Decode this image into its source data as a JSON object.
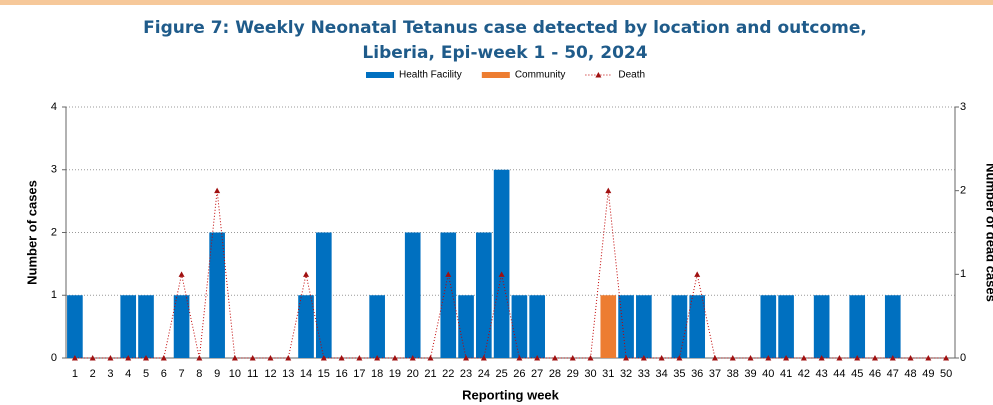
{
  "chart_data": {
    "type": "bar",
    "stacked": true,
    "title": "Figure 7: Weekly Neonatal Tetanus case detected by location and outcome, Liberia, Epi-week 1 - 50, 2024",
    "x_label": "Reporting week",
    "y_label": "Number of cases",
    "y2_label": "Number of dead cases",
    "categories": [
      1,
      2,
      3,
      4,
      5,
      6,
      7,
      8,
      9,
      10,
      11,
      12,
      13,
      14,
      15,
      16,
      17,
      18,
      19,
      20,
      21,
      22,
      23,
      24,
      25,
      26,
      27,
      28,
      29,
      30,
      31,
      32,
      33,
      34,
      35,
      36,
      37,
      38,
      39,
      40,
      41,
      42,
      43,
      44,
      45,
      46,
      47,
      48,
      49,
      50
    ],
    "series": [
      {
        "name": "Health Facility",
        "color": "#0070c0",
        "values": [
          1,
          0,
          0,
          1,
          1,
          0,
          1,
          0,
          2,
          0,
          0,
          0,
          0,
          1,
          2,
          0,
          0,
          1,
          0,
          2,
          0,
          2,
          1,
          2,
          3,
          1,
          1,
          0,
          0,
          0,
          0,
          1,
          1,
          0,
          1,
          1,
          0,
          0,
          0,
          1,
          1,
          0,
          1,
          0,
          1,
          0,
          1,
          0,
          0,
          0
        ]
      },
      {
        "name": "Community",
        "color": "#ed7d31",
        "values": [
          0,
          0,
          0,
          0,
          0,
          0,
          0,
          0,
          0,
          0,
          0,
          0,
          0,
          0,
          0,
          0,
          0,
          0,
          0,
          0,
          0,
          0,
          0,
          0,
          0,
          0,
          0,
          0,
          0,
          0,
          1,
          0,
          0,
          0,
          0,
          0,
          0,
          0,
          0,
          0,
          0,
          0,
          0,
          0,
          0,
          0,
          0,
          0,
          0,
          0
        ]
      },
      {
        "name": "Death",
        "color": "#c00000",
        "type": "line",
        "axis": "y2",
        "values": [
          0,
          0,
          0,
          0,
          0,
          0,
          1,
          0,
          2,
          0,
          0,
          0,
          0,
          1,
          0,
          0,
          0,
          0,
          0,
          0,
          0,
          1,
          0,
          0,
          1,
          0,
          0,
          0,
          0,
          0,
          2,
          0,
          0,
          0,
          0,
          1,
          0,
          0,
          0,
          0,
          0,
          0,
          0,
          0,
          0,
          0,
          0,
          0,
          0,
          0
        ]
      }
    ],
    "ylim": [
      0,
      4
    ],
    "yticks": [
      0,
      1,
      2,
      3,
      4
    ],
    "y2lim": [
      0,
      3
    ],
    "y2ticks": [
      0,
      1,
      2,
      3
    ],
    "grid": true,
    "legend": "top"
  }
}
